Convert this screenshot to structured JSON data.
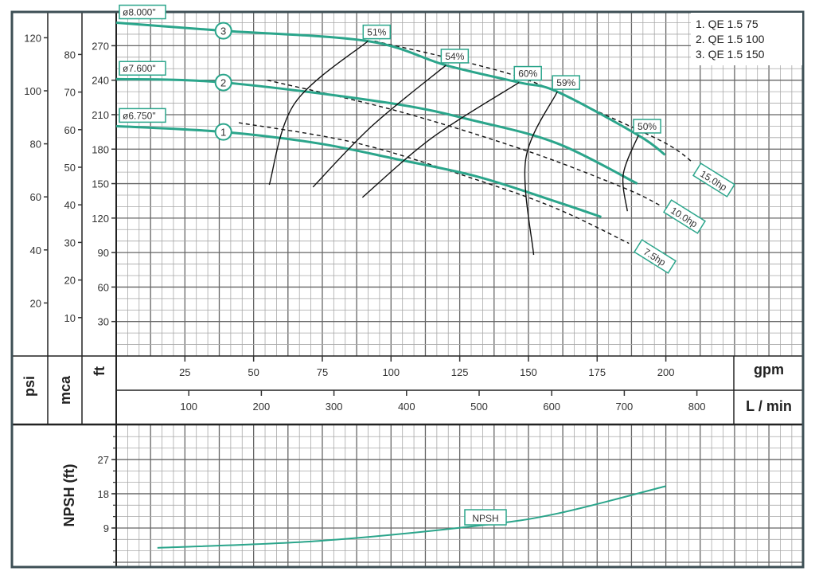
{
  "chart_data": {
    "type": "line",
    "title": "",
    "legend": {
      "placement": "top-right",
      "entries": [
        "1. QE 1.5 75",
        "2. QE 1.5 100",
        "3. QE 1.5 150"
      ]
    },
    "colors": {
      "curve": "#2ba58b",
      "frame": "#3d4f55",
      "grid": "#8c8c8c",
      "efficiency": "#111111",
      "power": "#111111"
    },
    "grid": true,
    "x_axes": {
      "gpm": {
        "label": "gpm",
        "ticks": [
          25,
          50,
          75,
          100,
          125,
          150,
          175,
          200
        ],
        "range": [
          0,
          249
        ]
      },
      "lmin": {
        "label": "L / min",
        "ticks": [
          100,
          200,
          300,
          400,
          500,
          600,
          700,
          800
        ]
      }
    },
    "y_axes": {
      "psi": {
        "label": "psi",
        "ticks": [
          20,
          40,
          60,
          80,
          100,
          120
        ]
      },
      "mca": {
        "label": "mca",
        "ticks": [
          10,
          20,
          30,
          40,
          50,
          60,
          70,
          80
        ]
      },
      "ft": {
        "label": "ft",
        "ticks": [
          30,
          60,
          90,
          120,
          150,
          180,
          210,
          240,
          270
        ],
        "range": [
          0,
          300
        ]
      }
    },
    "head_curves": [
      {
        "id": "1",
        "diameter": "ø6.750\"",
        "points": [
          [
            0,
            200
          ],
          [
            39,
            195
          ],
          [
            73.6,
            185
          ],
          [
            102.6,
            171
          ],
          [
            131.6,
            156
          ],
          [
            160.5,
            134
          ],
          [
            176.5,
            121
          ]
        ]
      },
      {
        "id": "2",
        "diameter": "ø7.600\"",
        "points": [
          [
            0,
            241
          ],
          [
            39,
            238
          ],
          [
            99.7,
            220
          ],
          [
            131.6,
            204
          ],
          [
            160.5,
            185
          ],
          [
            189.6,
            150
          ]
        ]
      },
      {
        "id": "3",
        "diameter": "ø8.000\"",
        "points": [
          [
            0,
            290
          ],
          [
            39,
            283
          ],
          [
            91.6,
            274
          ],
          [
            120,
            253
          ],
          [
            146.6,
            238
          ],
          [
            160.5,
            230
          ],
          [
            190,
            192
          ],
          [
            199.7,
            175
          ]
        ]
      }
    ],
    "power_curves": [
      {
        "label": "7.5hp",
        "points": [
          [
            44.6,
            203
          ],
          [
            88,
            185
          ],
          [
            131.6,
            153
          ],
          [
            160.5,
            128
          ],
          [
            186.6,
            98
          ]
        ]
      },
      {
        "label": "10.0hp",
        "points": [
          [
            55,
            240
          ],
          [
            102.6,
            213
          ],
          [
            150,
            178
          ],
          [
            185,
            146
          ],
          [
            198,
            131
          ]
        ]
      },
      {
        "label": "15.0hp",
        "points": [
          [
            94,
            274
          ],
          [
            125,
            257
          ],
          [
            150,
            240
          ],
          [
            175,
            213
          ],
          [
            200,
            185
          ],
          [
            210,
            168
          ]
        ]
      }
    ],
    "efficiency_curves": [
      {
        "label": "51%",
        "points": [
          [
            91.6,
            274
          ],
          [
            65,
            220
          ],
          [
            55.7,
            149
          ]
        ]
      },
      {
        "label": "54%",
        "points": [
          [
            120,
            253
          ],
          [
            93,
            200
          ],
          [
            71.6,
            147
          ]
        ]
      },
      {
        "label": "60%",
        "points": [
          [
            146.6,
            238
          ],
          [
            115,
            190
          ],
          [
            89.6,
            138
          ]
        ]
      },
      {
        "label": "59%",
        "points": [
          [
            160.5,
            230
          ],
          [
            149,
            171
          ],
          [
            151.9,
            88
          ]
        ]
      },
      {
        "label": "50%",
        "points": [
          [
            190,
            192
          ],
          [
            184.5,
            158
          ],
          [
            186,
            126
          ]
        ]
      }
    ],
    "npsh": {
      "ylabel": "NPSH (ft)",
      "label": "NPSH",
      "ticks": [
        9,
        18,
        27
      ],
      "range": [
        0,
        36
      ],
      "points": [
        [
          15,
          3.8
        ],
        [
          73.6,
          5.6
        ],
        [
          131.6,
          9.6
        ],
        [
          160.5,
          12.8
        ],
        [
          200,
          20
        ]
      ]
    }
  }
}
